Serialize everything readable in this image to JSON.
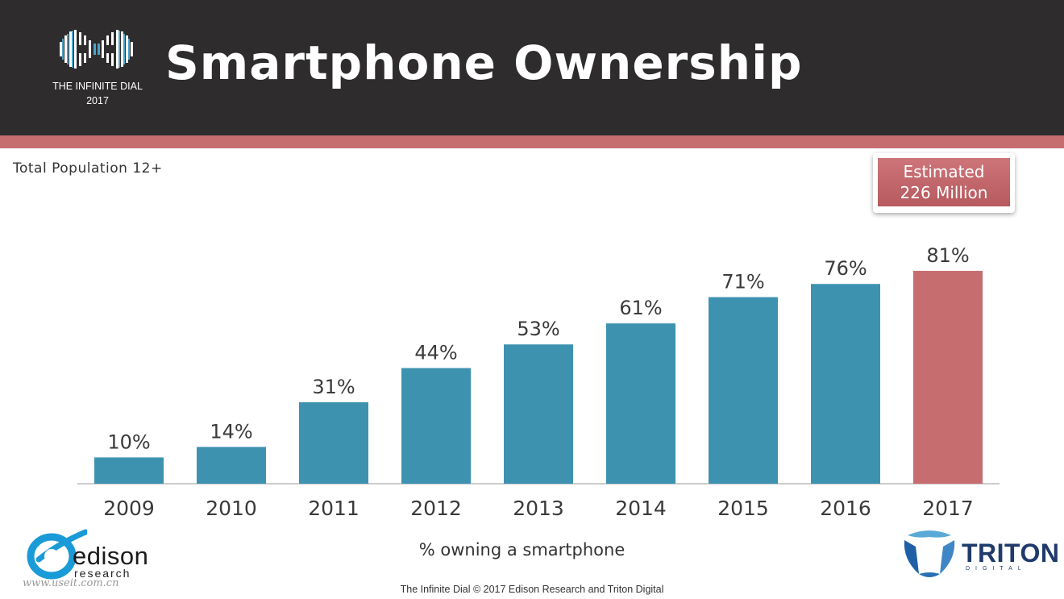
{
  "header": {
    "logo_name": "THE INFINITE DIAL",
    "logo_year": "2017",
    "title": "Smartphone Ownership"
  },
  "subtitle": "Total Population 12+",
  "estimate": {
    "line1": "Estimated",
    "line2": "226 Million"
  },
  "chart_data": {
    "type": "bar",
    "categories": [
      "2009",
      "2010",
      "2011",
      "2012",
      "2013",
      "2014",
      "2015",
      "2016",
      "2017"
    ],
    "values": [
      10,
      14,
      31,
      44,
      53,
      61,
      71,
      76,
      81
    ],
    "value_labels": [
      "10%",
      "14%",
      "31%",
      "44%",
      "53%",
      "61%",
      "71%",
      "76%",
      "81%"
    ],
    "xlabel": "% owning a smartphone",
    "ylim": [
      0,
      100
    ],
    "grid": false,
    "colors": {
      "default": "#3d92b0",
      "highlight": "#c66d70",
      "highlight_index": 8
    }
  },
  "logos": {
    "edison_name": "edison",
    "edison_sub": "research",
    "triton_name": "TRITON",
    "triton_sub": "DIGITAL"
  },
  "watermark": "www.useit.com.cn",
  "footer": "The Infinite Dial   © 2017 Edison Research and Triton Digital",
  "colors": {
    "header_bg": "#2f2c2d",
    "accent": "#c66d70",
    "bar": "#3d92b0"
  }
}
